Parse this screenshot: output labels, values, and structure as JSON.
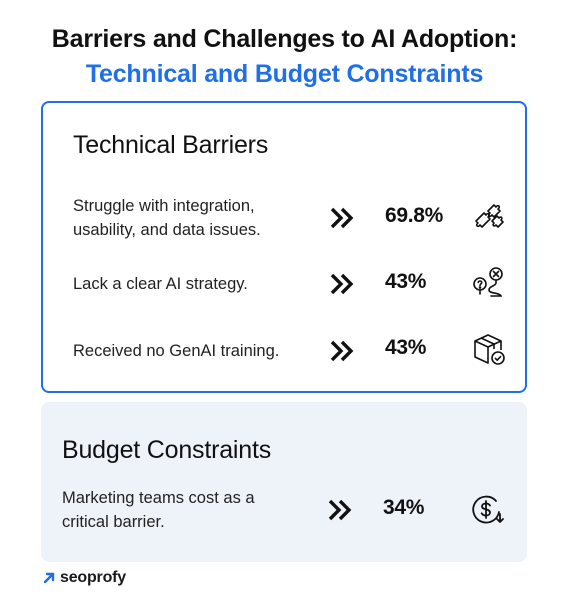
{
  "title": {
    "line1": "Barriers and Challenges to AI Adoption:",
    "line2": "Technical and Budget Constraints",
    "accent_color": "#1f6fe6"
  },
  "technical": {
    "heading": "Technical Barriers",
    "rows": [
      {
        "label_line1": "Struggle with integration,",
        "label_line2": "usability, and data issues.",
        "value": "69.8%",
        "icon": "puzzle-icon"
      },
      {
        "label": "Lack a clear AI strategy.",
        "value": "43%",
        "icon": "route-question-icon"
      },
      {
        "label": "Received no GenAI training.",
        "value": "43%",
        "icon": "box-check-icon"
      }
    ]
  },
  "budget": {
    "heading": "Budget Constraints",
    "rows": [
      {
        "label_line1": "Marketing teams cost as a",
        "label_line2": "critical barrier.",
        "value": "34%",
        "icon": "dollar-down-icon"
      }
    ]
  },
  "logo": {
    "text": "seoprofy",
    "icon": "arrow-up-right-icon"
  }
}
